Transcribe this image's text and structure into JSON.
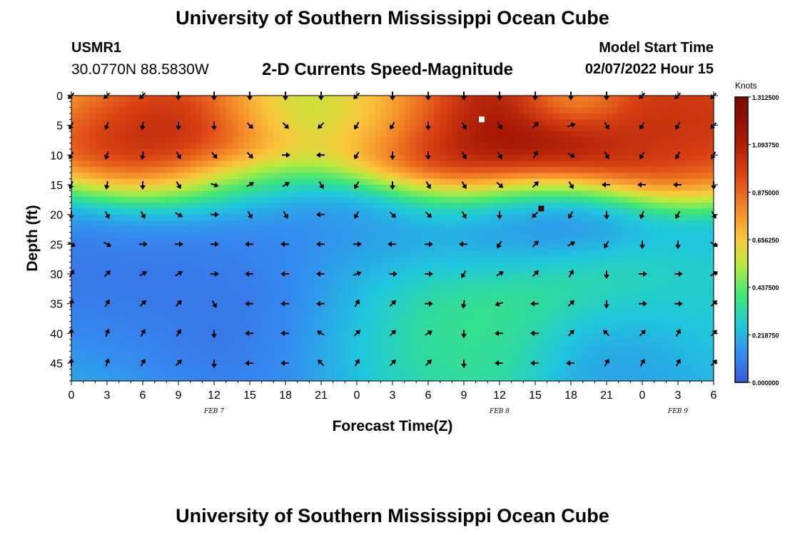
{
  "header": {
    "title": "University of Southern Mississippi Ocean Cube",
    "station_id": "USMR1",
    "station_coords": "30.0770N  88.5830W",
    "model_start_label": "Model Start Time",
    "model_start_value": "02/07/2022 Hour 15"
  },
  "footer": {
    "title": "University of Southern Mississippi Ocean Cube"
  },
  "colors": {
    "low": "#3b5bdb",
    "mid": "#40e060",
    "high": "#7a0a00",
    "arrow": "#000000",
    "marker": "#ffffff"
  },
  "chart_data": {
    "type": "heatmap",
    "title": "2-D Currents Speed-Magnitude",
    "xlabel": "Forecast Time(Z)",
    "ylabel": "Depth (ft)",
    "x_tick_labels": [
      "0",
      "3",
      "6",
      "9",
      "12",
      "15",
      "18",
      "21",
      "0",
      "3",
      "6",
      "9",
      "12",
      "15",
      "18",
      "21",
      "0",
      "3",
      "6"
    ],
    "x_range_hours": [
      0,
      54
    ],
    "date_labels": [
      {
        "text": "FEB 7",
        "hour": 12
      },
      {
        "text": "FEB 8",
        "hour": 36
      },
      {
        "text": "FEB 9",
        "hour": 51
      }
    ],
    "y_ticks": [
      0,
      5,
      10,
      15,
      20,
      25,
      30,
      35,
      40,
      45
    ],
    "y_range": [
      0,
      48
    ],
    "y_inverted": true,
    "colorbar": {
      "label": "Knots",
      "tick_labels": [
        "1.312500",
        "1.093750",
        "0.875000",
        "0.656250",
        "0.437500",
        "0.218750",
        "0.000000"
      ],
      "tick_values": [
        1.3125,
        1.09375,
        0.875,
        0.65625,
        0.4375,
        0.21875,
        0.0
      ],
      "range": [
        0,
        1.3125
      ]
    },
    "speed_centers": [
      {
        "hour": 0,
        "depth": 0,
        "value": 0.45,
        "spread": 6
      },
      {
        "hour": 4.5,
        "depth": 4,
        "value": 1.15,
        "spread": 6
      },
      {
        "hour": 9,
        "depth": 7,
        "value": 1.3,
        "spread": 7
      },
      {
        "hour": 12,
        "depth": 4,
        "value": 1.2,
        "spread": 6
      },
      {
        "hour": 16,
        "depth": 0,
        "value": 0.45,
        "spread": 5
      },
      {
        "hour": 18,
        "depth": 3,
        "value": 0.2,
        "spread": 4
      },
      {
        "hour": 24,
        "depth": 0,
        "value": 0.6,
        "spread": 5
      },
      {
        "hour": 26,
        "depth": 4,
        "value": 0.45,
        "spread": 5
      },
      {
        "hour": 33,
        "depth": 4,
        "value": 1.3,
        "spread": 7
      },
      {
        "hour": 36,
        "depth": 10,
        "value": 1.25,
        "spread": 6
      },
      {
        "hour": 39,
        "depth": 4,
        "value": 1.2,
        "spread": 6
      },
      {
        "hour": 42,
        "depth": 1,
        "value": 0.2,
        "spread": 3
      },
      {
        "hour": 47,
        "depth": 2,
        "value": 1.0,
        "spread": 6
      },
      {
        "hour": 52,
        "depth": 4,
        "value": 1.1,
        "spread": 6
      },
      {
        "hour": 2,
        "depth": 25,
        "value": 0.06,
        "spread": 8
      },
      {
        "hour": 12,
        "depth": 26,
        "value": 0.08,
        "spread": 5
      },
      {
        "hour": 15,
        "depth": 14,
        "value": 0.04,
        "spread": 5
      },
      {
        "hour": 21,
        "depth": 40,
        "value": 0.02,
        "spread": 7
      },
      {
        "hour": 24,
        "depth": 22,
        "value": 0.05,
        "spread": 5
      },
      {
        "hour": 36,
        "depth": 22,
        "value": 0.06,
        "spread": 6
      },
      {
        "hour": 39,
        "depth": 19,
        "value": 0.0,
        "spread": 4
      },
      {
        "hour": 45,
        "depth": 42,
        "value": 0.1,
        "spread": 5
      },
      {
        "hour": 32,
        "depth": 38,
        "value": 0.44,
        "spread": 6
      },
      {
        "hour": 28,
        "depth": 42,
        "value": 0.42,
        "spread": 6
      },
      {
        "hour": 34,
        "depth": 42,
        "value": 0.36,
        "spread": 5
      },
      {
        "hour": 40,
        "depth": 33,
        "value": 0.4,
        "spread": 6
      },
      {
        "hour": 51,
        "depth": 38,
        "value": 0.3,
        "spread": 6
      },
      {
        "hour": 28,
        "depth": 25,
        "value": 0.3,
        "spread": 6
      }
    ],
    "arrow_times": [
      0,
      3,
      6,
      9,
      12,
      15,
      18,
      21,
      24,
      27,
      30,
      33,
      36,
      39,
      42,
      45,
      48,
      51,
      54
    ],
    "arrow_depths": [
      0,
      5,
      10,
      15,
      20,
      25,
      30,
      35,
      40,
      45
    ],
    "arrow_directions_deg": [
      [
        225,
        225,
        225,
        270,
        270,
        270,
        270,
        270,
        225,
        270,
        270,
        270,
        270,
        270,
        270,
        270,
        225,
        225,
        225
      ],
      [
        240,
        250,
        260,
        270,
        270,
        315,
        315,
        225,
        240,
        240,
        270,
        300,
        300,
        45,
        20,
        300,
        240,
        240,
        225
      ],
      [
        240,
        250,
        260,
        300,
        310,
        315,
        0,
        180,
        240,
        270,
        270,
        300,
        300,
        60,
        330,
        300,
        240,
        240,
        240
      ],
      [
        250,
        260,
        270,
        300,
        340,
        30,
        30,
        300,
        240,
        270,
        300,
        300,
        320,
        45,
        300,
        180,
        180,
        180,
        270
      ],
      [
        270,
        300,
        300,
        330,
        0,
        300,
        300,
        180,
        240,
        315,
        315,
        300,
        270,
        225,
        240,
        270,
        250,
        240,
        300
      ],
      [
        330,
        330,
        0,
        0,
        0,
        180,
        180,
        180,
        0,
        180,
        0,
        180,
        240,
        45,
        30,
        240,
        270,
        270,
        330
      ],
      [
        60,
        45,
        30,
        30,
        0,
        180,
        180,
        180,
        20,
        0,
        0,
        240,
        30,
        45,
        60,
        270,
        0,
        0,
        30
      ],
      [
        80,
        60,
        45,
        45,
        300,
        180,
        180,
        180,
        60,
        45,
        0,
        260,
        200,
        180,
        45,
        270,
        0,
        0,
        45
      ],
      [
        90,
        70,
        60,
        60,
        270,
        180,
        180,
        150,
        45,
        45,
        30,
        270,
        180,
        180,
        45,
        135,
        45,
        60,
        45
      ],
      [
        90,
        70,
        60,
        45,
        270,
        180,
        180,
        135,
        60,
        45,
        45,
        270,
        180,
        180,
        180,
        60,
        60,
        60,
        45
      ]
    ],
    "marker_points": [
      {
        "hour": 34.5,
        "depth": 4,
        "color": "#ffffff"
      },
      {
        "hour": 39.5,
        "depth": 19,
        "color": "#3a0800"
      }
    ]
  }
}
